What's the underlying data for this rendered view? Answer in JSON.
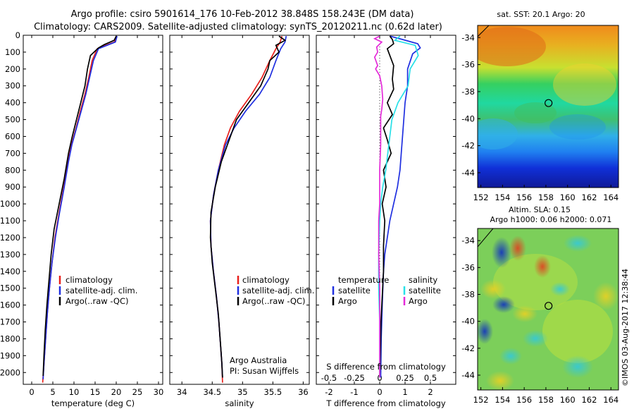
{
  "title": {
    "line1": "Argo profile: csiro 5901614_176 10-Feb-2012 38.848S 158.243E (DM data)",
    "line2": "Climatology: CARS2009. Satellite-adjusted climatology: synTS_20120211.nc (0.62d later)"
  },
  "colors": {
    "climatology": "#e8201c",
    "satellite_adj": "#1f2fe0",
    "argo": "#000000",
    "sal_satellite": "#27e0e8",
    "sal_argo": "#e42ad8"
  },
  "chart_data": [
    {
      "id": "temperature",
      "type": "line",
      "xlabel": "temperature (deg C)",
      "ylabel": "",
      "xlim": [
        -2,
        31
      ],
      "ylim": [
        2070,
        0
      ],
      "xticks": [
        0,
        5,
        10,
        15,
        20,
        25,
        30
      ],
      "yticks": [
        0,
        100,
        200,
        300,
        400,
        500,
        600,
        700,
        800,
        900,
        1000,
        1100,
        1200,
        1300,
        1400,
        1500,
        1600,
        1700,
        1800,
        1900,
        2000
      ],
      "legend": {
        "position": "center-left",
        "entries": [
          "climatology",
          "satellite-adj. clim.",
          "Argo(..raw -QC)"
        ]
      },
      "series": [
        {
          "name": "climatology",
          "color_key": "climatology",
          "points": [
            [
              20.0,
              5
            ],
            [
              19.6,
              40
            ],
            [
              17.5,
              60
            ],
            [
              15.5,
              80
            ],
            [
              14.3,
              150
            ],
            [
              13.5,
              250
            ],
            [
              12.6,
              350
            ],
            [
              11.5,
              450
            ],
            [
              10.5,
              550
            ],
            [
              9.4,
              650
            ],
            [
              8.6,
              750
            ],
            [
              7.6,
              900
            ],
            [
              6.5,
              1050
            ],
            [
              5.5,
              1200
            ],
            [
              4.8,
              1350
            ],
            [
              4.2,
              1500
            ],
            [
              3.7,
              1650
            ],
            [
              3.3,
              1800
            ],
            [
              2.9,
              1950
            ],
            [
              2.6,
              2060
            ]
          ]
        },
        {
          "name": "satellite-adj. clim.",
          "color_key": "satellite_adj",
          "points": [
            [
              20.2,
              5
            ],
            [
              19.8,
              40
            ],
            [
              17.8,
              60
            ],
            [
              15.8,
              80
            ],
            [
              14.6,
              150
            ],
            [
              13.7,
              250
            ],
            [
              12.8,
              350
            ],
            [
              11.7,
              450
            ],
            [
              10.6,
              550
            ],
            [
              9.5,
              650
            ],
            [
              8.7,
              750
            ],
            [
              7.7,
              900
            ],
            [
              6.6,
              1050
            ],
            [
              5.6,
              1200
            ],
            [
              4.8,
              1350
            ],
            [
              4.2,
              1500
            ],
            [
              3.7,
              1650
            ],
            [
              3.3,
              1800
            ],
            [
              2.9,
              1950
            ],
            [
              2.7,
              2040
            ]
          ]
        },
        {
          "name": "Argo(..raw -QC)",
          "color_key": "argo",
          "points": [
            [
              20.0,
              5
            ],
            [
              19.5,
              30
            ],
            [
              17.2,
              55
            ],
            [
              15.8,
              75
            ],
            [
              13.9,
              120
            ],
            [
              13.2,
              200
            ],
            [
              12.6,
              300
            ],
            [
              11.6,
              400
            ],
            [
              10.6,
              500
            ],
            [
              9.6,
              600
            ],
            [
              8.7,
              700
            ],
            [
              7.7,
              850
            ],
            [
              6.5,
              1000
            ],
            [
              5.3,
              1150
            ],
            [
              4.6,
              1300
            ],
            [
              4.1,
              1450
            ],
            [
              3.6,
              1600
            ],
            [
              3.2,
              1750
            ],
            [
              2.9,
              1900
            ],
            [
              2.7,
              2020
            ]
          ]
        }
      ]
    },
    {
      "id": "salinity",
      "type": "line",
      "xlabel": "salinity",
      "ylabel": "",
      "xlim": [
        33.8,
        36.1
      ],
      "ylim": [
        2070,
        0
      ],
      "xticks": [
        34,
        34.5,
        35,
        35.5,
        36
      ],
      "legend": {
        "position": "center",
        "entries": [
          "climatology",
          "satellite-adj. clim.",
          "Argo(..raw -QC)"
        ]
      },
      "annotations": [
        "Argo Australia",
        "PI: Susan Wijffels"
      ],
      "series": [
        {
          "name": "climatology",
          "color_key": "climatology",
          "points": [
            [
              35.65,
              5
            ],
            [
              35.62,
              40
            ],
            [
              35.55,
              80
            ],
            [
              35.45,
              150
            ],
            [
              35.32,
              250
            ],
            [
              35.15,
              350
            ],
            [
              34.95,
              450
            ],
            [
              34.8,
              550
            ],
            [
              34.7,
              650
            ],
            [
              34.6,
              800
            ],
            [
              34.52,
              950
            ],
            [
              34.47,
              1100
            ],
            [
              34.48,
              1250
            ],
            [
              34.52,
              1400
            ],
            [
              34.57,
              1550
            ],
            [
              34.61,
              1700
            ],
            [
              34.64,
              1850
            ],
            [
              34.66,
              1950
            ],
            [
              34.67,
              2060
            ]
          ]
        },
        {
          "name": "satellite-adj. clim.",
          "color_key": "satellite_adj",
          "points": [
            [
              35.72,
              5
            ],
            [
              35.7,
              40
            ],
            [
              35.63,
              80
            ],
            [
              35.55,
              150
            ],
            [
              35.45,
              250
            ],
            [
              35.28,
              350
            ],
            [
              35.05,
              450
            ],
            [
              34.86,
              550
            ],
            [
              34.72,
              650
            ],
            [
              34.6,
              800
            ],
            [
              34.52,
              950
            ],
            [
              34.47,
              1100
            ],
            [
              34.48,
              1250
            ],
            [
              34.52,
              1400
            ],
            [
              34.57,
              1550
            ],
            [
              34.61,
              1700
            ],
            [
              34.64,
              1850
            ],
            [
              34.66,
              1950
            ],
            [
              34.67,
              2030
            ]
          ]
        },
        {
          "name": "Argo(..raw -QC)",
          "color_key": "argo",
          "points": [
            [
              35.6,
              5
            ],
            [
              35.7,
              30
            ],
            [
              35.55,
              60
            ],
            [
              35.6,
              100
            ],
            [
              35.45,
              150
            ],
            [
              35.42,
              200
            ],
            [
              35.3,
              300
            ],
            [
              35.1,
              400
            ],
            [
              34.9,
              500
            ],
            [
              34.8,
              600
            ],
            [
              34.65,
              750
            ],
            [
              34.55,
              900
            ],
            [
              34.48,
              1050
            ],
            [
              34.47,
              1200
            ],
            [
              34.5,
              1350
            ],
            [
              34.55,
              1500
            ],
            [
              34.6,
              1650
            ],
            [
              34.63,
              1800
            ],
            [
              34.66,
              1950
            ],
            [
              34.67,
              2030
            ]
          ]
        }
      ]
    },
    {
      "id": "difference",
      "type": "line",
      "xlabel": "T difference from climatology",
      "xlabel_top": "S difference from climatology",
      "xlim": [
        -2.5,
        3.0
      ],
      "ylim": [
        2070,
        0
      ],
      "xticks": [
        -2,
        -1,
        0,
        1,
        2
      ],
      "xticks_s": [
        "-0.5",
        "-0.25",
        "0",
        "0.25",
        "0.5"
      ],
      "legend": {
        "position": "center",
        "temperature_heading": "temperature",
        "salinity_heading": "salinity",
        "temperature_entries": [
          "satellite",
          "Argo"
        ],
        "salinity_entries": [
          "satellite",
          "Argo"
        ]
      },
      "series": [
        {
          "name": "satellite",
          "quantity": "temperature",
          "color_key": "satellite_adj",
          "points": [
            [
              0.4,
              5
            ],
            [
              0.9,
              25
            ],
            [
              1.5,
              50
            ],
            [
              1.6,
              75
            ],
            [
              1.3,
              110
            ],
            [
              1.1,
              200
            ],
            [
              1.1,
              300
            ],
            [
              1.0,
              400
            ],
            [
              0.95,
              500
            ],
            [
              0.9,
              600
            ],
            [
              0.85,
              700
            ],
            [
              0.8,
              800
            ],
            [
              0.7,
              900
            ],
            [
              0.55,
              1000
            ],
            [
              0.4,
              1100
            ],
            [
              0.3,
              1200
            ],
            [
              0.2,
              1300
            ],
            [
              0.15,
              1400
            ],
            [
              0.1,
              1600
            ],
            [
              0.06,
              1800
            ],
            [
              0.04,
              2030
            ]
          ]
        },
        {
          "name": "Argo",
          "quantity": "temperature",
          "color_key": "argo",
          "points": [
            [
              0.4,
              5
            ],
            [
              0.5,
              25
            ],
            [
              0.55,
              50
            ],
            [
              0.3,
              80
            ],
            [
              0.4,
              120
            ],
            [
              0.55,
              180
            ],
            [
              0.5,
              260
            ],
            [
              0.55,
              320
            ],
            [
              0.3,
              400
            ],
            [
              0.5,
              470
            ],
            [
              0.15,
              550
            ],
            [
              0.3,
              620
            ],
            [
              0.45,
              700
            ],
            [
              0.15,
              800
            ],
            [
              0.25,
              900
            ],
            [
              0.1,
              1000
            ],
            [
              0.2,
              1100
            ],
            [
              0.15,
              1250
            ],
            [
              0.15,
              1400
            ],
            [
              0.1,
              1550
            ],
            [
              0.05,
              1700
            ],
            [
              0.03,
              1850
            ],
            [
              0.0,
              2030
            ]
          ]
        },
        {
          "name": "satellite",
          "quantity": "salinity",
          "color_key": "sal_satellite",
          "points": [
            [
              0.2,
              5
            ],
            [
              0.15,
              30
            ],
            [
              0.35,
              60
            ],
            [
              0.38,
              120
            ],
            [
              0.3,
              200
            ],
            [
              0.28,
              300
            ],
            [
              0.18,
              400
            ],
            [
              0.12,
              500
            ],
            [
              0.1,
              600
            ],
            [
              0.08,
              700
            ],
            [
              0.06,
              800
            ],
            [
              0.03,
              900
            ],
            [
              0.01,
              1000
            ],
            [
              0.0,
              1100
            ],
            [
              -0.01,
              1300
            ],
            [
              -0.01,
              1500
            ],
            [
              0.0,
              1700
            ],
            [
              0.0,
              1900
            ],
            [
              0.0,
              2030
            ]
          ]
        },
        {
          "name": "Argo",
          "quantity": "salinity",
          "color_key": "sal_argo",
          "points": [
            [
              0.0,
              5
            ],
            [
              -0.05,
              20
            ],
            [
              0.02,
              40
            ],
            [
              -0.03,
              70
            ],
            [
              -0.02,
              100
            ],
            [
              -0.05,
              130
            ],
            [
              -0.02,
              180
            ],
            [
              -0.04,
              200
            ],
            [
              0.0,
              240
            ],
            [
              0.02,
              300
            ],
            [
              0.03,
              380
            ],
            [
              0.02,
              440
            ],
            [
              0.01,
              480
            ],
            [
              0.01,
              550
            ],
            [
              0.01,
              650
            ],
            [
              0.0,
              800
            ],
            [
              0.0,
              1000
            ],
            [
              -0.01,
              1100
            ],
            [
              -0.01,
              1300
            ],
            [
              0.0,
              1500
            ],
            [
              0.0,
              1700
            ],
            [
              0.0,
              1900
            ],
            [
              0.0,
              2030
            ]
          ]
        }
      ]
    },
    {
      "id": "sst-map",
      "type": "heatmap",
      "title": "sat. SST: 20.1  Argo: 20",
      "xlim": [
        151.7,
        164.7
      ],
      "ylim": [
        -45.1,
        -33.1
      ],
      "xticks": [
        152,
        154,
        156,
        158,
        160,
        162,
        164
      ],
      "yticks": [
        -34,
        -36,
        -38,
        -40,
        -42,
        -44
      ],
      "argo_position": {
        "lon": 158.243,
        "lat": -38.848
      }
    },
    {
      "id": "sla-map",
      "type": "heatmap",
      "title_line1": "Altim. SLA: 0.15",
      "title_line2": "Argo h1000: 0.06 h2000: 0.071",
      "xlim": [
        151.7,
        164.7
      ],
      "ylim": [
        -45.1,
        -33.1
      ],
      "xticks": [
        152,
        154,
        156,
        158,
        160,
        162,
        164
      ],
      "yticks": [
        -34,
        -36,
        -38,
        -40,
        -42,
        -44
      ],
      "argo_position": {
        "lon": 158.243,
        "lat": -38.848
      }
    }
  ],
  "credit": "©IMOS 03-Aug-2017 12:38:44"
}
